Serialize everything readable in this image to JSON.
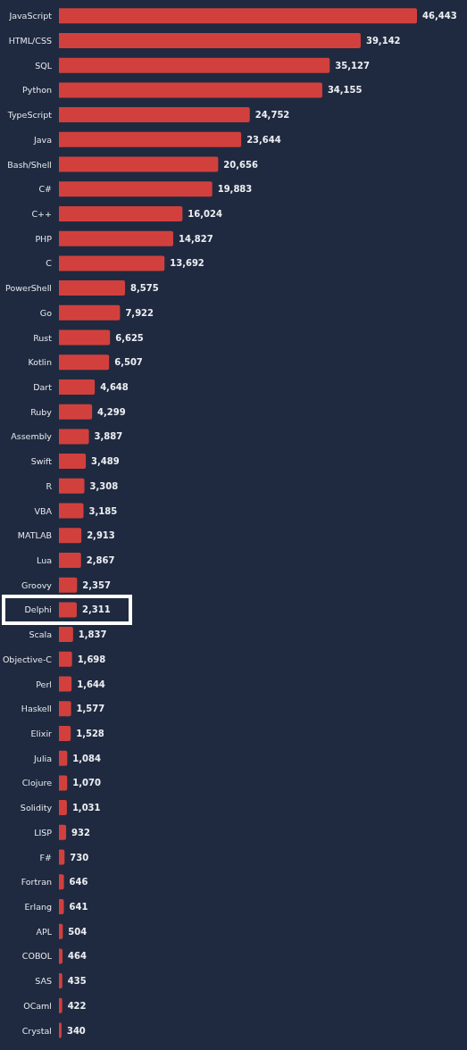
{
  "chart_data": {
    "type": "bar",
    "orientation": "horizontal",
    "categories": [
      "JavaScript",
      "HTML/CSS",
      "SQL",
      "Python",
      "TypeScript",
      "Java",
      "Bash/Shell",
      "C#",
      "C++",
      "PHP",
      "C",
      "PowerShell",
      "Go",
      "Rust",
      "Kotlin",
      "Dart",
      "Ruby",
      "Assembly",
      "Swift",
      "R",
      "VBA",
      "MATLAB",
      "Lua",
      "Groovy",
      "Delphi",
      "Scala",
      "Objective-C",
      "Perl",
      "Haskell",
      "Elixir",
      "Julia",
      "Clojure",
      "Solidity",
      "LISP",
      "F#",
      "Fortran",
      "Erlang",
      "APL",
      "COBOL",
      "SAS",
      "OCaml",
      "Crystal"
    ],
    "color": "#d2403d",
    "values": [
      46443,
      39142,
      35127,
      34155,
      24752,
      23644,
      20656,
      19883,
      16024,
      14827,
      13692,
      8575,
      7922,
      6625,
      6507,
      4648,
      4299,
      3887,
      3489,
      3308,
      3185,
      2913,
      2867,
      2357,
      2311,
      1837,
      1698,
      1644,
      1577,
      1528,
      1084,
      1070,
      1031,
      932,
      730,
      646,
      641,
      504,
      464,
      435,
      422,
      340
    ],
    "value_labels": [
      "46,443",
      "39,142",
      "35,127",
      "34,155",
      "24,752",
      "23,644",
      "20,656",
      "19,883",
      "16,024",
      "14,827",
      "13,692",
      "8,575",
      "7,922",
      "6,625",
      "6,507",
      "4,648",
      "4,299",
      "3,887",
      "3,489",
      "3,308",
      "3,185",
      "2,913",
      "2,867",
      "2,357",
      "2,311",
      "1,837",
      "1,698",
      "1,644",
      "1,577",
      "1,528",
      "1,084",
      "1,070",
      "1,031",
      "932",
      "730",
      "646",
      "641",
      "504",
      "464",
      "435",
      "422",
      "340"
    ]
  }
}
